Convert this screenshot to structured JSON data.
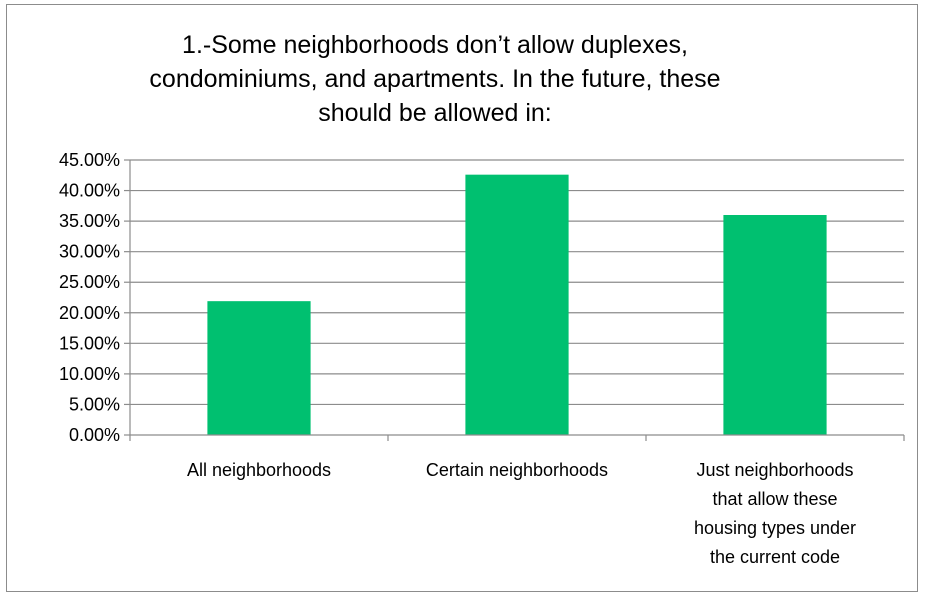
{
  "chart_data": {
    "type": "bar",
    "title_lines": [
      "1.-Some neighborhoods don’t allow duplexes,",
      "condominiums, and apartments. In the future, these",
      "should be allowed in:"
    ],
    "categories": [
      [
        "All neighborhoods"
      ],
      [
        "Certain neighborhoods"
      ],
      [
        "Just neighborhoods",
        "that allow these",
        "housing types under",
        "the current code"
      ]
    ],
    "values": [
      21.9,
      42.6,
      36.0
    ],
    "ylim": [
      0,
      45
    ],
    "yticks": [
      "0.00%",
      "5.00%",
      "10.00%",
      "15.00%",
      "20.00%",
      "25.00%",
      "30.00%",
      "35.00%",
      "40.00%",
      "45.00%"
    ],
    "xlabel": "",
    "ylabel": "",
    "grid": true,
    "bar_color": "#00c070",
    "grid_color": "#8c8c8c"
  }
}
